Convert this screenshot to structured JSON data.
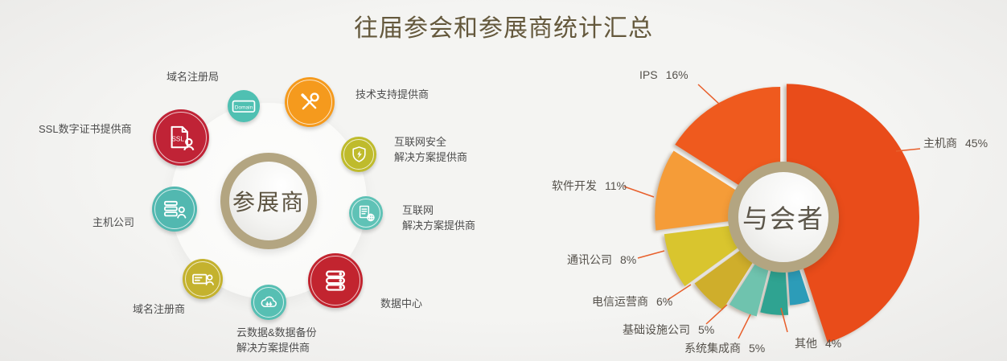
{
  "title": "往届参会和参展商统计汇总",
  "colors": {
    "title": "#64583c",
    "label_text": "#4d4d4d",
    "center_ring": "#b3a581",
    "leader_line": "#e85f2b",
    "background": "#f0f0ee"
  },
  "exhibitor_diagram": {
    "center_label": "参展商",
    "nodes": [
      {
        "id": "domain-registry",
        "label_lines": [
          "域名注册局"
        ],
        "icon": "domain-icon",
        "color": "#4fc0b2"
      },
      {
        "id": "tech-support-provider",
        "label_lines": [
          "技术支持提供商"
        ],
        "icon": "tools-icon",
        "color": "#f59a1d"
      },
      {
        "id": "ssl-certificate-provider",
        "label_lines": [
          "SSL数字证书提供商"
        ],
        "icon": "ssl-cert-icon",
        "color": "#c02336"
      },
      {
        "id": "internet-security-provider",
        "label_lines": [
          "互联网安全",
          "解决方案提供商"
        ],
        "icon": "shield-icon",
        "color": "#bfbb2c"
      },
      {
        "id": "hosting-company",
        "label_lines": [
          "主机公司"
        ],
        "icon": "server-user-icon",
        "color": "#52b8b0"
      },
      {
        "id": "internet-solutions-provider",
        "label_lines": [
          "互联网",
          "解决方案提供商"
        ],
        "icon": "doc-globe-icon",
        "color": "#5fc2b6"
      },
      {
        "id": "domain-registrar",
        "label_lines": [
          "域名注册商"
        ],
        "icon": "id-card-icon",
        "color": "#c4b22e"
      },
      {
        "id": "cloud-backup-provider",
        "label_lines": [
          "云数据&数据备份",
          "解决方案提供商"
        ],
        "icon": "cloud-icon",
        "color": "#57bfb3"
      },
      {
        "id": "data-center",
        "label_lines": [
          "数据中心"
        ],
        "icon": "server-stack-icon",
        "color": "#c2242f"
      }
    ]
  },
  "chart_data": {
    "type": "pie",
    "center_label": "与会者",
    "unit": "%",
    "direction": "clockwise",
    "start_angle_deg": 0,
    "legend_position": "around",
    "slices": [
      {
        "id": "hosting-provider",
        "name": "主机商",
        "value": 45,
        "pct_label": "45%",
        "color": "#e94c1a",
        "radius": 165,
        "explode": 4
      },
      {
        "id": "others",
        "name": "其他",
        "value": 4,
        "pct_label": "4%",
        "color": "#2c9cb8",
        "radius": 100,
        "explode": 10
      },
      {
        "id": "system-integrator",
        "name": "系统集成商",
        "value": 5,
        "pct_label": "5%",
        "color": "#2fa391",
        "radius": 112,
        "explode": 10
      },
      {
        "id": "infrastructure-company",
        "name": "基础设施公司",
        "value": 5,
        "pct_label": "5%",
        "color": "#6fc3ae",
        "radius": 118,
        "explode": 10
      },
      {
        "id": "telecom-operator",
        "name": "电信运营商",
        "value": 6,
        "pct_label": "6%",
        "color": "#cfae2b",
        "radius": 128,
        "explode": 10
      },
      {
        "id": "communications-company",
        "name": "通讯公司",
        "value": 8,
        "pct_label": "8%",
        "color": "#d9c52e",
        "radius": 140,
        "explode": 10
      },
      {
        "id": "software-development",
        "name": "软件开发",
        "value": 11,
        "pct_label": "11%",
        "color": "#f59c38",
        "radius": 150,
        "explode": 10
      },
      {
        "id": "ips",
        "name": "IPS",
        "value": 16,
        "pct_label": "16%",
        "color": "#ef5a1e",
        "radius": 155,
        "explode": 8
      }
    ]
  }
}
